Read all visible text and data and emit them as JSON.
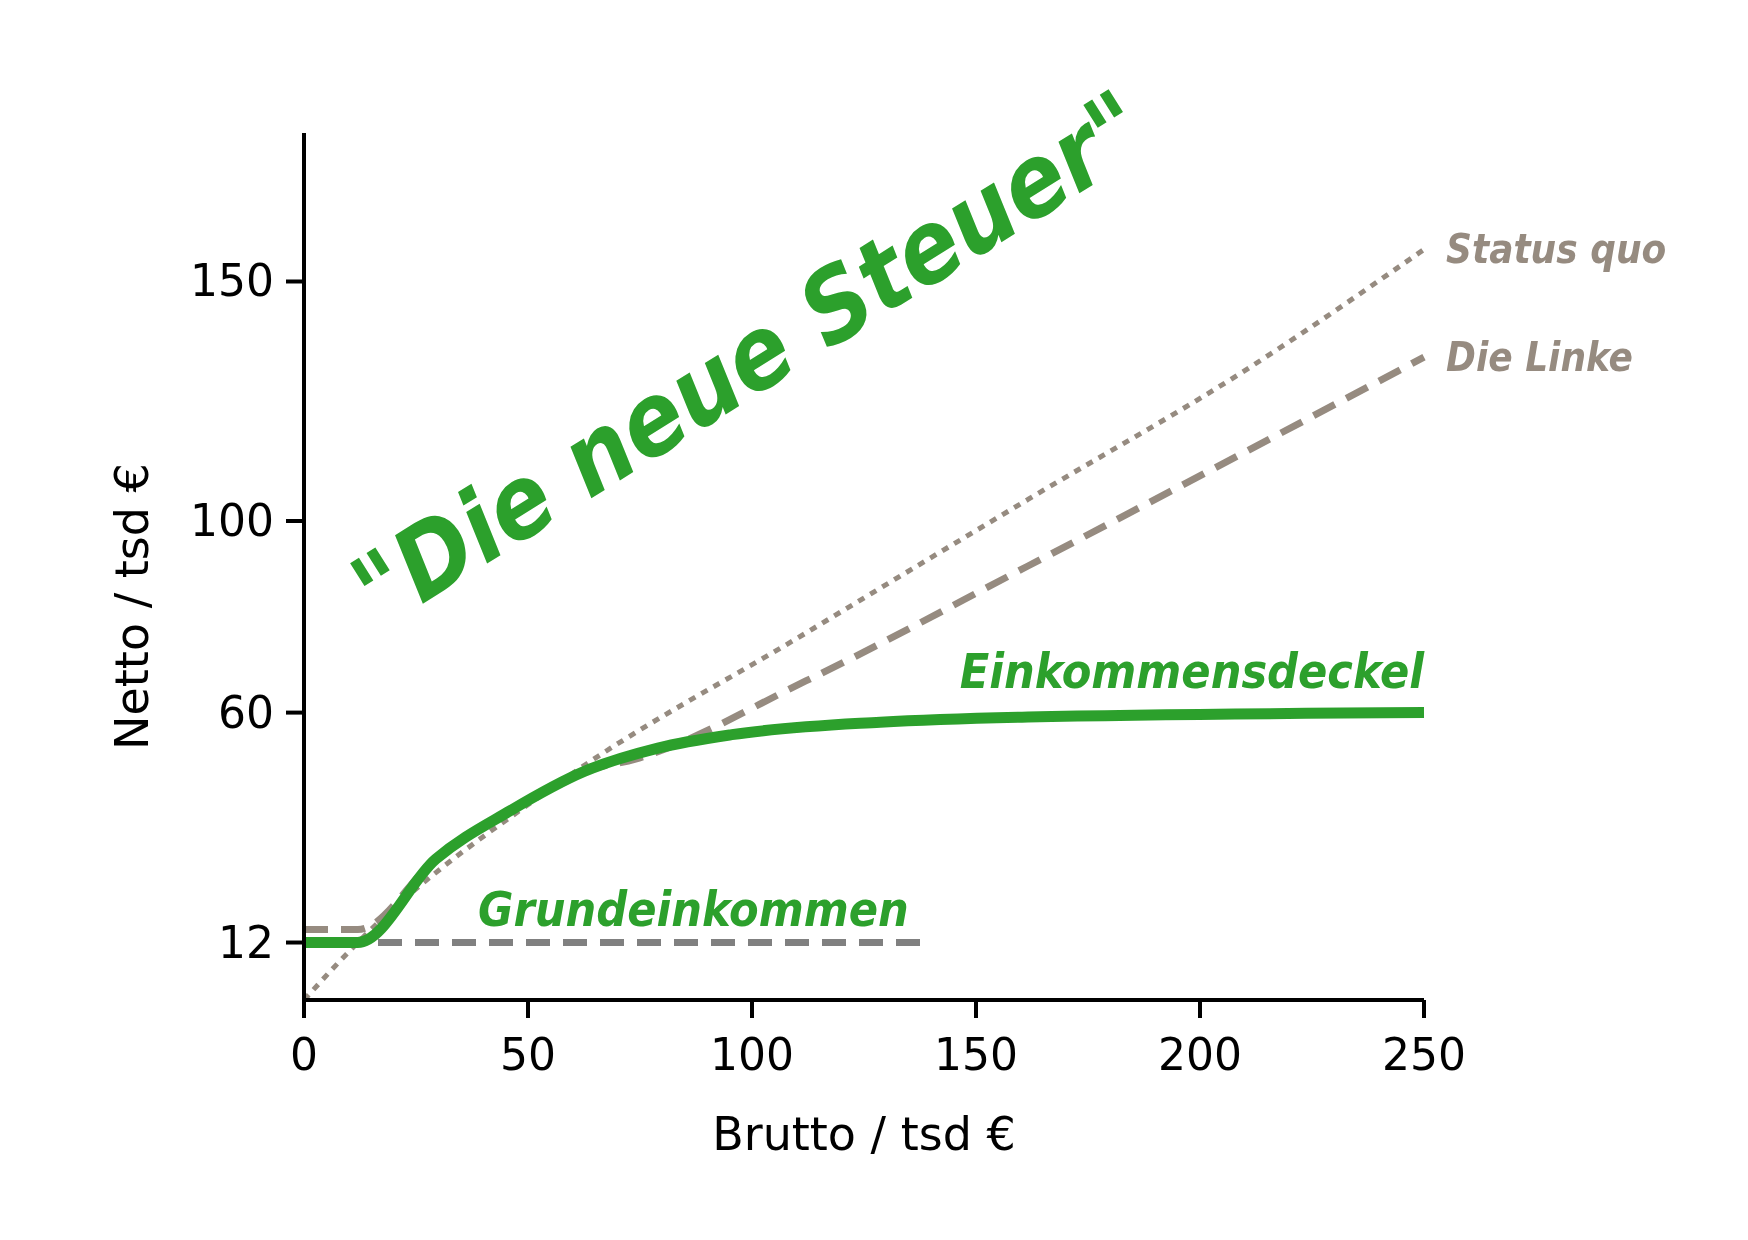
{
  "chart_data": {
    "type": "line",
    "xlabel": "Brutto / tsd €",
    "ylabel": "Netto / tsd €",
    "xlim": [
      0,
      250
    ],
    "xticks": [
      0,
      50,
      100,
      150,
      200,
      250
    ],
    "ylim": [
      0,
      181
    ],
    "yticks": [
      12,
      60,
      100,
      150
    ],
    "series": [
      {
        "name": "Status quo",
        "color": "#968b80",
        "line_style": "dotted",
        "x": [
          0,
          12,
          57.5,
          112,
          161.6,
          211,
          250
        ],
        "values": [
          0,
          12,
          45.7,
          76.6,
          104.5,
          132,
          156.7
        ]
      },
      {
        "name": "Die Linke",
        "color": "#968b80",
        "line_style": "dashed",
        "x": [
          0,
          12,
          29.4,
          46,
          62.5,
          74,
          112,
          161.6,
          250
        ],
        "values": [
          14.7,
          14.7,
          29.4,
          39.5,
          47.7,
          50.3,
          66.6,
          90.6,
          134.2
        ]
      },
      {
        "color": "#808080",
        "line_style": "dashed",
        "x": [
          0,
          137.7
        ],
        "values": [
          12,
          12
        ]
      },
      {
        "color": "#2ca02c",
        "line_style": "solid",
        "x": [
          0,
          12,
          29.4,
          46,
          62.5,
          79,
          95.5,
          128.6,
          161.6,
          250
        ],
        "values": [
          12,
          12,
          29.4,
          39.5,
          47.7,
          52.6,
          55.4,
          58,
          59.1,
          60
        ]
      }
    ],
    "annotations": [
      "Grundeinkommen",
      "Einkommensdeckel",
      "\"Die neue Steuer\""
    ]
  }
}
